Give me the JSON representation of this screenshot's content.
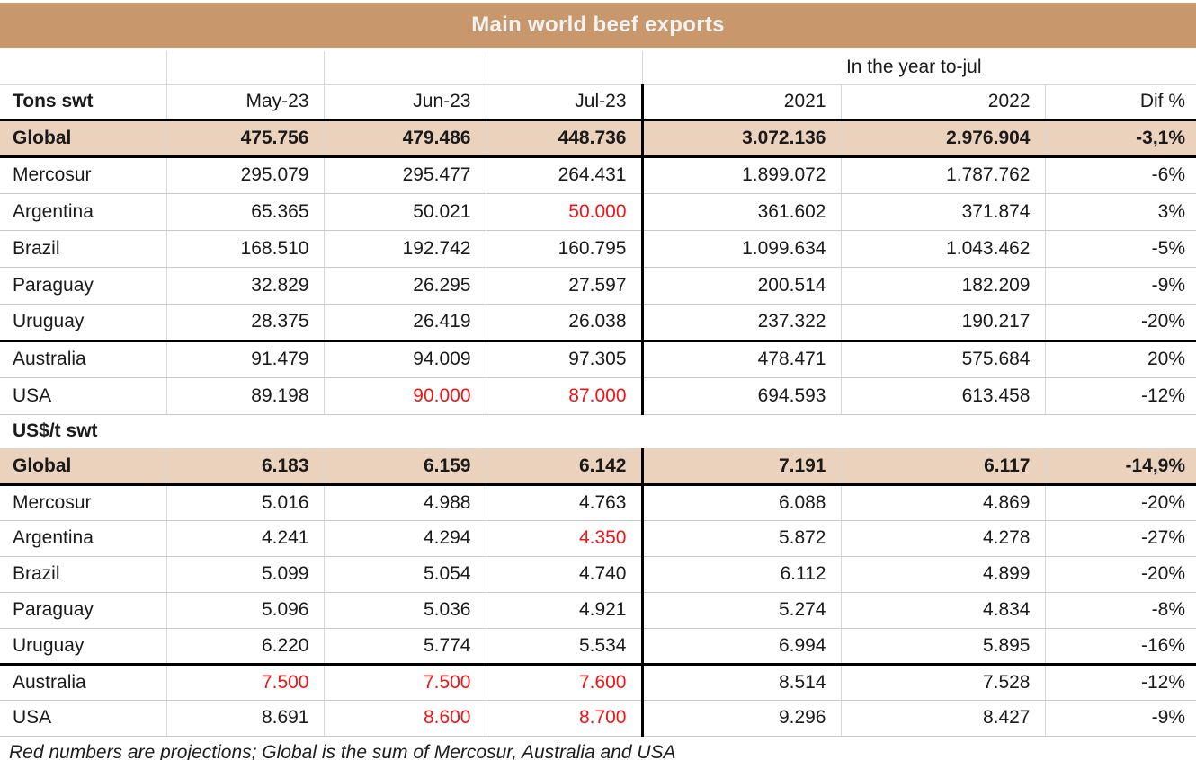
{
  "title": "Main world beef exports",
  "group_header_label": "In the year to-jul",
  "footnote": "Red numbers are projections; Global is the sum of Mercosur, Australia and USA",
  "colors": {
    "title_band": "#c8986c",
    "title_text": "#f2f2f2",
    "highlight_row": "#ebd2bd",
    "projection_red": "#f01414",
    "grid_line": "#d8d8d8",
    "strong_line": "#000000"
  },
  "chart_data": [
    {
      "type": "table",
      "title": "Main world beef exports",
      "unit_label": "Tons swt",
      "columns": [
        "May-23",
        "Jun-23",
        "Jul-23",
        "2021",
        "2022",
        "Dif %"
      ],
      "group_header": {
        "label": "In the year to-jul",
        "spans": [
          "2021",
          "2022",
          "Dif %"
        ]
      },
      "rows": [
        {
          "label": "Global",
          "bold": true,
          "highlight": true,
          "cells": [
            {
              "v": "475.756"
            },
            {
              "v": "479.486"
            },
            {
              "v": "448.736"
            },
            {
              "v": "3.072.136"
            },
            {
              "v": "2.976.904"
            },
            {
              "v": "-3,1%"
            }
          ]
        },
        {
          "label": "Mercosur",
          "cells": [
            {
              "v": "295.079"
            },
            {
              "v": "295.477"
            },
            {
              "v": "264.431"
            },
            {
              "v": "1.899.072"
            },
            {
              "v": "1.787.762"
            },
            {
              "v": "-6%"
            }
          ]
        },
        {
          "label": "Argentina",
          "cells": [
            {
              "v": "65.365"
            },
            {
              "v": "50.021"
            },
            {
              "v": "50.000",
              "red": true
            },
            {
              "v": "361.602"
            },
            {
              "v": "371.874"
            },
            {
              "v": "3%"
            }
          ]
        },
        {
          "label": "Brazil",
          "cells": [
            {
              "v": "168.510"
            },
            {
              "v": "192.742"
            },
            {
              "v": "160.795"
            },
            {
              "v": "1.099.634"
            },
            {
              "v": "1.043.462"
            },
            {
              "v": "-5%"
            }
          ]
        },
        {
          "label": "Paraguay",
          "cells": [
            {
              "v": "32.829"
            },
            {
              "v": "26.295"
            },
            {
              "v": "27.597"
            },
            {
              "v": "200.514"
            },
            {
              "v": "182.209"
            },
            {
              "v": "-9%"
            }
          ]
        },
        {
          "label": "Uruguay",
          "thick_bottom": true,
          "cells": [
            {
              "v": "28.375"
            },
            {
              "v": "26.419"
            },
            {
              "v": "26.038"
            },
            {
              "v": "237.322"
            },
            {
              "v": "190.217"
            },
            {
              "v": "-20%"
            }
          ]
        },
        {
          "label": "Australia",
          "cells": [
            {
              "v": "91.479"
            },
            {
              "v": "94.009"
            },
            {
              "v": "97.305"
            },
            {
              "v": "478.471"
            },
            {
              "v": "575.684"
            },
            {
              "v": "20%"
            }
          ]
        },
        {
          "label": "USA",
          "cells": [
            {
              "v": "89.198"
            },
            {
              "v": "90.000",
              "red": true
            },
            {
              "v": "87.000",
              "red": true
            },
            {
              "v": "694.593"
            },
            {
              "v": "613.458"
            },
            {
              "v": "-12%"
            }
          ]
        }
      ]
    },
    {
      "type": "table",
      "title": "Main world beef exports",
      "unit_label": "US$/t swt",
      "columns": [
        "May-23",
        "Jun-23",
        "Jul-23",
        "2021",
        "2022",
        "Dif %"
      ],
      "rows": [
        {
          "label": "Global",
          "bold": true,
          "highlight": true,
          "cells": [
            {
              "v": "6.183"
            },
            {
              "v": "6.159"
            },
            {
              "v": "6.142"
            },
            {
              "v": "7.191"
            },
            {
              "v": "6.117"
            },
            {
              "v": "-14,9%"
            }
          ]
        },
        {
          "label": "Mercosur",
          "cells": [
            {
              "v": "5.016"
            },
            {
              "v": "4.988"
            },
            {
              "v": "4.763"
            },
            {
              "v": "6.088"
            },
            {
              "v": "4.869"
            },
            {
              "v": "-20%"
            }
          ]
        },
        {
          "label": "Argentina",
          "cells": [
            {
              "v": "4.241"
            },
            {
              "v": "4.294"
            },
            {
              "v": "4.350",
              "red": true
            },
            {
              "v": "5.872"
            },
            {
              "v": "4.278"
            },
            {
              "v": "-27%"
            }
          ]
        },
        {
          "label": "Brazil",
          "cells": [
            {
              "v": "5.099"
            },
            {
              "v": "5.054"
            },
            {
              "v": "4.740"
            },
            {
              "v": "6.112"
            },
            {
              "v": "4.899"
            },
            {
              "v": "-20%"
            }
          ]
        },
        {
          "label": "Paraguay",
          "cells": [
            {
              "v": "5.096"
            },
            {
              "v": "5.036"
            },
            {
              "v": "4.921"
            },
            {
              "v": "5.274"
            },
            {
              "v": "4.834"
            },
            {
              "v": "-8%"
            }
          ]
        },
        {
          "label": "Uruguay",
          "thick_bottom": true,
          "cells": [
            {
              "v": "6.220"
            },
            {
              "v": "5.774"
            },
            {
              "v": "5.534"
            },
            {
              "v": "6.994"
            },
            {
              "v": "5.895"
            },
            {
              "v": "-16%"
            }
          ]
        },
        {
          "label": "Australia",
          "cells": [
            {
              "v": "7.500",
              "red": true
            },
            {
              "v": "7.500",
              "red": true
            },
            {
              "v": "7.600",
              "red": true
            },
            {
              "v": "8.514"
            },
            {
              "v": "7.528"
            },
            {
              "v": "-12%"
            }
          ]
        },
        {
          "label": "USA",
          "cells": [
            {
              "v": "8.691"
            },
            {
              "v": "8.600",
              "red": true
            },
            {
              "v": "8.700",
              "red": true
            },
            {
              "v": "9.296"
            },
            {
              "v": "8.427"
            },
            {
              "v": "-9%"
            }
          ]
        }
      ]
    }
  ]
}
